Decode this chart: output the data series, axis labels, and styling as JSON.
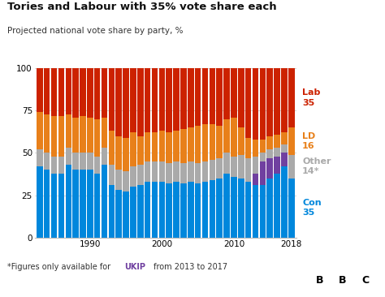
{
  "title": "Tories and Labour with 35% vote share each",
  "subtitle": "Projected national vote share by party, %",
  "years": [
    1983,
    1984,
    1985,
    1986,
    1987,
    1988,
    1989,
    1990,
    1991,
    1992,
    1993,
    1994,
    1995,
    1996,
    1997,
    1998,
    1999,
    2000,
    2001,
    2002,
    2003,
    2004,
    2005,
    2006,
    2007,
    2008,
    2009,
    2010,
    2011,
    2012,
    2013,
    2014,
    2015,
    2016,
    2017,
    2018
  ],
  "con": [
    42,
    40,
    38,
    38,
    43,
    40,
    40,
    40,
    38,
    43,
    31,
    28,
    27,
    30,
    31,
    33,
    33,
    33,
    32,
    33,
    32,
    33,
    32,
    33,
    34,
    35,
    38,
    36,
    35,
    33,
    31,
    31,
    35,
    38,
    42,
    35
  ],
  "ld": [
    22,
    23,
    24,
    24,
    20,
    21,
    22,
    21,
    22,
    18,
    20,
    20,
    20,
    20,
    17,
    17,
    17,
    18,
    18,
    18,
    20,
    20,
    22,
    22,
    21,
    19,
    20,
    23,
    16,
    12,
    10,
    8,
    8,
    8,
    7,
    16
  ],
  "other": [
    10,
    10,
    10,
    10,
    10,
    10,
    10,
    10,
    10,
    10,
    12,
    12,
    12,
    12,
    12,
    12,
    12,
    12,
    12,
    12,
    12,
    12,
    12,
    12,
    12,
    12,
    12,
    12,
    14,
    14,
    10,
    5,
    5,
    5,
    5,
    14
  ],
  "ukip": [
    0,
    0,
    0,
    0,
    0,
    0,
    0,
    0,
    0,
    0,
    0,
    0,
    0,
    0,
    0,
    0,
    0,
    0,
    0,
    0,
    0,
    0,
    0,
    0,
    0,
    0,
    0,
    0,
    0,
    0,
    7,
    14,
    12,
    10,
    8,
    0
  ],
  "lab_color": "#cc2200",
  "con_color": "#0087dc",
  "ld_color": "#e8801a",
  "other_color": "#aaaaaa",
  "ukip_color": "#7040a0",
  "background_color": "#ffffff",
  "ylim": [
    0,
    100
  ],
  "yticks": [
    0,
    25,
    50,
    75,
    100
  ],
  "xticks": [
    1990,
    2000,
    2010,
    2018
  ],
  "bar_width": 0.85
}
